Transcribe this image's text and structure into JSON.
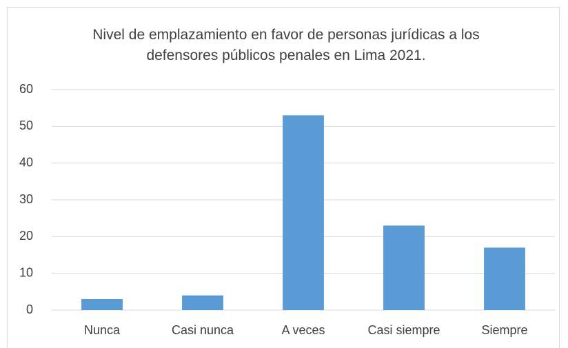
{
  "chart_data": {
    "type": "bar",
    "title": "Nivel de emplazamiento en favor de personas jurídicas a los defensores públicos penales en Lima 2021.",
    "categories": [
      "Nunca",
      "Casi nunca",
      "A veces",
      "Casi siempre",
      "Siempre"
    ],
    "values": [
      3,
      4,
      53,
      23,
      17
    ],
    "color": "#5b9bd5",
    "ylim": [
      0,
      60
    ],
    "yticks": [
      0,
      10,
      20,
      30,
      40,
      50,
      60
    ],
    "grid": true
  }
}
